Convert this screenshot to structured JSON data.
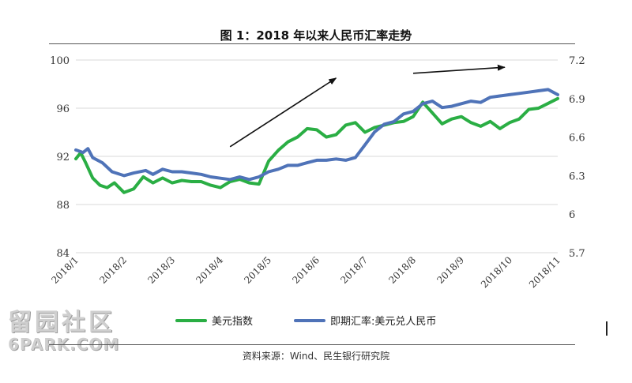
{
  "title": "图 1：2018 年以来人民币汇率走势",
  "source": "资料来源：Wind、民生银行研究院",
  "watermark": {
    "cn": "留园社区",
    "en": "6PARK.COM"
  },
  "chart_data": {
    "type": "line",
    "x": [
      "2018/1",
      "2018/2",
      "2018/3",
      "2018/4",
      "2018/5",
      "2018/6",
      "2018/7",
      "2018/8",
      "2018/9",
      "2018/10",
      "2018/11"
    ],
    "x_tick_labels": [
      "2018/1",
      "2018/2",
      "2018/3",
      "2018/4",
      "2018/5",
      "2018/6",
      "2018/7",
      "2018/8",
      "2018/9",
      "2018/10",
      "2018/11"
    ],
    "y_left": {
      "ticks": [
        "84",
        "88",
        "92",
        "96",
        "100"
      ],
      "ylim": [
        84,
        100
      ]
    },
    "y_right": {
      "ticks": [
        "5.7",
        "6",
        "6.3",
        "6.6",
        "6.9",
        "7.2"
      ],
      "ylim": [
        5.7,
        7.2
      ]
    },
    "grid": "horizontal",
    "legend_position": "bottom",
    "series": [
      {
        "name": "美元指数",
        "color": "#2aae44",
        "axis": "left",
        "x": [
          0.0,
          0.1,
          0.2,
          0.35,
          0.5,
          0.65,
          0.8,
          1.0,
          1.2,
          1.4,
          1.6,
          1.8,
          2.0,
          2.2,
          2.4,
          2.6,
          2.8,
          3.0,
          3.2,
          3.4,
          3.6,
          3.8,
          4.0,
          4.2,
          4.4,
          4.6,
          4.8,
          5.0,
          5.2,
          5.4,
          5.6,
          5.8,
          6.0,
          6.2,
          6.4,
          6.6,
          6.8,
          7.0,
          7.2,
          7.4,
          7.6,
          7.8,
          8.0,
          8.2,
          8.4,
          8.6,
          8.8,
          9.0,
          9.2,
          9.4,
          9.6,
          9.8,
          10.0
        ],
        "values": [
          91.8,
          92.3,
          91.5,
          90.2,
          89.6,
          89.4,
          89.8,
          89.0,
          89.3,
          90.3,
          89.8,
          90.2,
          89.8,
          90.0,
          89.9,
          89.9,
          89.6,
          89.4,
          89.9,
          90.1,
          89.8,
          89.7,
          91.6,
          92.5,
          93.2,
          93.6,
          94.3,
          94.2,
          93.6,
          93.8,
          94.6,
          94.8,
          94.0,
          94.4,
          94.6,
          94.8,
          94.9,
          95.3,
          96.5,
          95.6,
          94.7,
          95.1,
          95.3,
          94.8,
          94.5,
          94.9,
          94.3,
          94.8,
          95.1,
          95.9,
          96.0,
          96.4,
          96.8
        ]
      },
      {
        "name": "即期汇率:美元兑人民币",
        "color": "#4f73b8",
        "axis": "right",
        "x": [
          0.0,
          0.15,
          0.25,
          0.35,
          0.55,
          0.75,
          1.0,
          1.2,
          1.45,
          1.6,
          1.8,
          2.0,
          2.2,
          2.4,
          2.6,
          2.8,
          3.0,
          3.2,
          3.4,
          3.6,
          3.8,
          4.0,
          4.2,
          4.4,
          4.6,
          4.8,
          5.0,
          5.2,
          5.4,
          5.6,
          5.8,
          6.0,
          6.2,
          6.4,
          6.6,
          6.8,
          7.0,
          7.2,
          7.4,
          7.6,
          7.8,
          8.0,
          8.2,
          8.4,
          8.6,
          8.8,
          9.0,
          9.2,
          9.4,
          9.6,
          9.8,
          10.0
        ],
        "values": [
          6.5,
          6.48,
          6.51,
          6.44,
          6.4,
          6.33,
          6.3,
          6.32,
          6.34,
          6.31,
          6.35,
          6.33,
          6.33,
          6.32,
          6.31,
          6.29,
          6.28,
          6.27,
          6.29,
          6.27,
          6.29,
          6.33,
          6.35,
          6.38,
          6.38,
          6.4,
          6.42,
          6.42,
          6.43,
          6.42,
          6.44,
          6.54,
          6.64,
          6.7,
          6.72,
          6.78,
          6.8,
          6.86,
          6.88,
          6.83,
          6.84,
          6.86,
          6.88,
          6.87,
          6.91,
          6.92,
          6.93,
          6.94,
          6.95,
          6.96,
          6.97,
          6.93
        ]
      }
    ],
    "annotations": [
      {
        "type": "arrow",
        "from": [
          3.2,
          92.8
        ],
        "to": [
          5.4,
          98.5
        ],
        "axis": "left"
      },
      {
        "type": "arrow",
        "from": [
          7.0,
          98.9
        ],
        "to": [
          8.9,
          99.4
        ],
        "axis": "left"
      }
    ]
  }
}
